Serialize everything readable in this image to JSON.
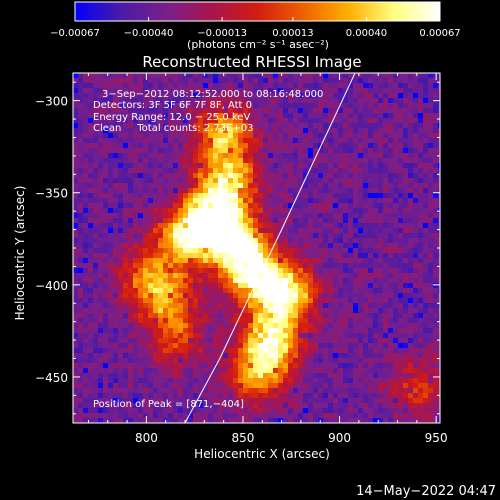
{
  "chart_data": {
    "type": "heatmap",
    "title": "Reconstructed RHESSI Image",
    "xlabel": "Heliocentric X (arcsec)",
    "ylabel": "Heliocentric Y (arcsec)",
    "xlim": [
      762,
      952
    ],
    "ylim": [
      -475,
      -285
    ],
    "x_ticks": [
      800,
      850,
      900,
      950
    ],
    "y_ticks": [
      -300,
      -350,
      -400,
      -450
    ],
    "x_tick_labels": [
      "800",
      "850",
      "900",
      "950"
    ],
    "y_tick_labels": [
      "−300",
      "−350",
      "−400",
      "−450"
    ],
    "colorbar": {
      "min": -0.00067,
      "max": 0.00067,
      "tick_values": [
        -0.00067,
        -0.0004,
        -0.00013,
        0.00013,
        0.0004,
        0.00067
      ],
      "tick_labels": [
        "−0.00067",
        "−0.00040",
        "−0.00013",
        "0.00013",
        "0.00040",
        "0.00067"
      ],
      "unit_label": "(photons cm⁻² s⁻¹ asec⁻²)",
      "colormap": [
        "#0000ff",
        "#4b1aa6",
        "#7a1f8a",
        "#a8154f",
        "#d21c10",
        "#f06000",
        "#ffb000",
        "#ffff80",
        "#ffffff"
      ]
    },
    "annotations": [
      "3−Sep−2012 08:12:52.000 to 08:16:48.000",
      "Detectors: 3F 5F 6F 7F 8F, Att 0",
      "Energy Range: 12.0 − 25.0 keV",
      "Clean     Total counts: 2.73E+03",
      "Position of Peak = [871,−404]"
    ],
    "limb_line": [
      [
        908,
        -285
      ],
      [
        900,
        -303
      ],
      [
        870,
        -370
      ],
      [
        848,
        -418
      ],
      [
        838,
        -440
      ],
      [
        820,
        -475
      ]
    ],
    "bright_sources": [
      {
        "x": 840,
        "y": -318,
        "strength": 0.8
      },
      {
        "x": 842,
        "y": -345,
        "strength": 0.9
      },
      {
        "x": 833,
        "y": -365,
        "strength": 0.95
      },
      {
        "x": 820,
        "y": -375,
        "strength": 0.8
      },
      {
        "x": 848,
        "y": -378,
        "strength": 0.9
      },
      {
        "x": 855,
        "y": -395,
        "strength": 0.85
      },
      {
        "x": 872,
        "y": -405,
        "strength": 1.0
      },
      {
        "x": 865,
        "y": -430,
        "strength": 0.9
      },
      {
        "x": 858,
        "y": -448,
        "strength": 0.7
      },
      {
        "x": 810,
        "y": -408,
        "strength": 0.6
      },
      {
        "x": 800,
        "y": -395,
        "strength": 0.5
      },
      {
        "x": 815,
        "y": -430,
        "strength": 0.45
      },
      {
        "x": 940,
        "y": -455,
        "strength": 0.45
      }
    ],
    "timestamp": "14−May−2022 04:47"
  }
}
